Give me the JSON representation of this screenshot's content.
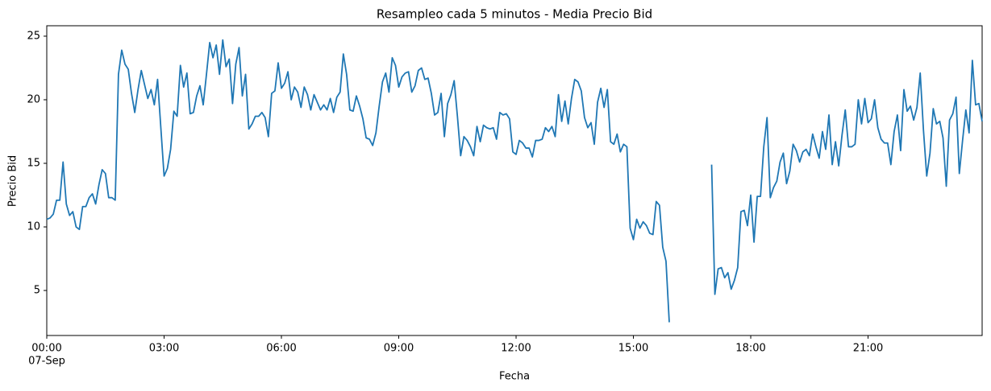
{
  "chart_data": {
    "type": "line",
    "title": "Resampleo cada 5 minutos - Media Precio Bid",
    "x_label": "Fecha",
    "y_label": "Precio Bid",
    "color": "#1f77b4",
    "x": [
      "00:00",
      "00:05",
      "00:10",
      "00:15",
      "00:20",
      "00:25",
      "00:30",
      "00:35",
      "00:40",
      "00:45",
      "00:50",
      "00:55",
      "01:00",
      "01:05",
      "01:10",
      "01:15",
      "01:20",
      "01:25",
      "01:30",
      "01:35",
      "01:40",
      "01:45",
      "01:50",
      "01:55",
      "02:00",
      "02:05",
      "02:10",
      "02:15",
      "02:20",
      "02:25",
      "02:30",
      "02:35",
      "02:40",
      "02:45",
      "02:50",
      "02:55",
      "03:00",
      "03:05",
      "03:10",
      "03:15",
      "03:20",
      "03:25",
      "03:30",
      "03:35",
      "03:40",
      "03:45",
      "03:50",
      "03:55",
      "04:00",
      "04:05",
      "04:10",
      "04:15",
      "04:20",
      "04:25",
      "04:30",
      "04:35",
      "04:40",
      "04:45",
      "04:50",
      "04:55",
      "05:00",
      "05:05",
      "05:10",
      "05:15",
      "05:20",
      "05:25",
      "05:30",
      "05:35",
      "05:40",
      "05:45",
      "05:50",
      "05:55",
      "06:00",
      "06:05",
      "06:10",
      "06:15",
      "06:20",
      "06:25",
      "06:30",
      "06:35",
      "06:40",
      "06:45",
      "06:50",
      "06:55",
      "07:00",
      "07:05",
      "07:10",
      "07:15",
      "07:20",
      "07:25",
      "07:30",
      "07:35",
      "07:40",
      "07:45",
      "07:50",
      "07:55",
      "08:00",
      "08:05",
      "08:10",
      "08:15",
      "08:20",
      "08:25",
      "08:30",
      "08:35",
      "08:40",
      "08:45",
      "08:50",
      "08:55",
      "09:00",
      "09:05",
      "09:10",
      "09:15",
      "09:20",
      "09:25",
      "09:30",
      "09:35",
      "09:40",
      "09:45",
      "09:50",
      "09:55",
      "10:00",
      "10:05",
      "10:10",
      "10:15",
      "10:20",
      "10:25",
      "10:30",
      "10:35",
      "10:40",
      "10:45",
      "10:50",
      "10:55",
      "11:00",
      "11:05",
      "11:10",
      "11:15",
      "11:20",
      "11:25",
      "11:30",
      "11:35",
      "11:40",
      "11:45",
      "11:50",
      "11:55",
      "12:00",
      "12:05",
      "12:10",
      "12:15",
      "12:20",
      "12:25",
      "12:30",
      "12:35",
      "12:40",
      "12:45",
      "12:50",
      "12:55",
      "13:00",
      "13:05",
      "13:10",
      "13:15",
      "13:20",
      "13:25",
      "13:30",
      "13:35",
      "13:40",
      "13:45",
      "13:50",
      "13:55",
      "14:00",
      "14:05",
      "14:10",
      "14:15",
      "14:20",
      "14:25",
      "14:30",
      "14:35",
      "14:40",
      "14:45",
      "14:50",
      "14:55",
      "15:00",
      "15:05",
      "15:10",
      "15:15",
      "15:20",
      "15:25",
      "15:30",
      "15:35",
      "15:40",
      "15:45",
      "15:50",
      "15:55",
      "16:00",
      "16:05",
      "16:10",
      "16:15",
      "16:20",
      "16:25",
      "16:30",
      "16:35",
      "16:40",
      "16:45",
      "16:50",
      "16:55",
      "17:00",
      "17:05",
      "17:10",
      "17:15",
      "17:20",
      "17:25",
      "17:30",
      "17:35",
      "17:40",
      "17:45",
      "17:50",
      "17:55",
      "18:00",
      "18:05",
      "18:10",
      "18:15",
      "18:20",
      "18:25",
      "18:30",
      "18:35",
      "18:40",
      "18:45",
      "18:50",
      "18:55",
      "19:00",
      "19:05",
      "19:10",
      "19:15",
      "19:20",
      "19:25",
      "19:30",
      "19:35",
      "19:40",
      "19:45",
      "19:50",
      "19:55",
      "20:00",
      "20:05",
      "20:10",
      "20:15",
      "20:20",
      "20:25",
      "20:30",
      "20:35",
      "20:40",
      "20:45",
      "20:50",
      "20:55",
      "21:00",
      "21:05",
      "21:10",
      "21:15",
      "21:20",
      "21:25",
      "21:30",
      "21:35",
      "21:40",
      "21:45",
      "21:50",
      "21:55",
      "22:00",
      "22:05",
      "22:10",
      "22:15",
      "22:20",
      "22:25",
      "22:30",
      "22:35",
      "22:40",
      "22:45",
      "22:50",
      "22:55",
      "23:00",
      "23:05",
      "23:10",
      "23:15",
      "23:20",
      "23:25",
      "23:30",
      "23:35",
      "23:40",
      "23:45",
      "23:50",
      "23:55"
    ],
    "values": [
      10.6,
      10.7,
      11.0,
      12.1,
      12.1,
      15.1,
      11.8,
      10.9,
      11.2,
      10.0,
      9.8,
      11.6,
      11.6,
      12.3,
      12.6,
      11.8,
      13.3,
      14.5,
      14.2,
      12.3,
      12.3,
      12.1,
      22.0,
      23.9,
      22.8,
      22.4,
      20.5,
      19.0,
      20.8,
      22.3,
      21.2,
      20.1,
      20.8,
      19.6,
      21.6,
      17.8,
      14.0,
      14.6,
      16.1,
      19.1,
      18.7,
      22.7,
      21.0,
      22.1,
      18.9,
      19.0,
      20.3,
      21.1,
      19.6,
      22.0,
      24.5,
      23.3,
      24.3,
      22.0,
      24.7,
      22.6,
      23.2,
      19.7,
      22.8,
      24.1,
      20.3,
      22.0,
      17.7,
      18.1,
      18.7,
      18.7,
      19.0,
      18.6,
      17.1,
      20.5,
      20.7,
      22.9,
      20.9,
      21.3,
      22.2,
      20.0,
      21.0,
      20.6,
      19.4,
      21.0,
      20.4,
      19.2,
      20.4,
      19.8,
      19.2,
      19.6,
      19.2,
      20.1,
      19.0,
      20.2,
      20.6,
      23.6,
      22.0,
      19.2,
      19.1,
      20.3,
      19.5,
      18.5,
      17.0,
      16.9,
      16.4,
      17.4,
      19.5,
      21.4,
      22.1,
      20.6,
      23.3,
      22.7,
      21.0,
      21.8,
      22.1,
      22.2,
      20.6,
      21.1,
      22.3,
      22.5,
      21.6,
      21.7,
      20.5,
      18.8,
      19.0,
      20.5,
      17.1,
      19.7,
      20.4,
      21.5,
      18.7,
      15.6,
      17.1,
      16.8,
      16.3,
      15.6,
      17.9,
      16.7,
      18.0,
      17.8,
      17.7,
      17.8,
      16.9,
      19.0,
      18.8,
      18.9,
      18.5,
      15.9,
      15.7,
      16.8,
      16.6,
      16.2,
      16.2,
      15.5,
      16.8,
      16.8,
      16.9,
      17.8,
      17.5,
      17.9,
      17.1,
      20.4,
      18.3,
      19.9,
      18.1,
      20.1,
      21.6,
      21.4,
      20.7,
      18.6,
      17.8,
      18.2,
      16.5,
      19.8,
      20.9,
      19.4,
      20.8,
      16.7,
      16.5,
      17.3,
      15.9,
      16.5,
      16.3,
      9.9,
      9.0,
      10.6,
      9.9,
      10.4,
      10.1,
      9.5,
      9.4,
      12.0,
      11.7,
      8.4,
      7.3,
      2.5,
      null,
      null,
      null,
      null,
      null,
      null,
      null,
      null,
      null,
      null,
      null,
      null,
      14.9,
      4.7,
      6.7,
      6.8,
      6.0,
      6.4,
      5.1,
      5.8,
      6.8,
      11.2,
      11.3,
      10.1,
      12.5,
      8.8,
      12.4,
      12.4,
      16.3,
      18.6,
      12.3,
      13.1,
      13.6,
      15.1,
      15.8,
      13.4,
      14.4,
      16.5,
      16.0,
      15.1,
      15.9,
      16.1,
      15.6,
      17.3,
      16.3,
      15.4,
      17.5,
      16.1,
      18.8,
      14.9,
      16.7,
      14.8,
      17.2,
      19.2,
      16.3,
      16.3,
      16.5,
      20.0,
      18.1,
      20.1,
      18.2,
      18.5,
      20.0,
      17.8,
      16.9,
      16.6,
      16.6,
      14.9,
      17.5,
      18.8,
      16.0,
      20.8,
      19.1,
      19.5,
      18.4,
      19.4,
      22.1,
      17.6,
      14.0,
      15.8,
      19.3,
      18.1,
      18.3,
      17.0,
      13.2,
      18.4,
      18.9,
      20.2,
      14.2,
      16.8,
      19.2,
      17.4,
      23.1,
      19.6,
      19.7,
      18.3
    ],
    "xlim": [
      "00:00",
      "23:55"
    ],
    "xticks": [
      "00:00",
      "03:00",
      "06:00",
      "09:00",
      "12:00",
      "15:00",
      "18:00",
      "21:00"
    ],
    "xtick_sublabel": "07-Sep",
    "ylim": [
      1.46,
      25.82
    ],
    "yticks": [
      5,
      10,
      15,
      20,
      25
    ]
  }
}
